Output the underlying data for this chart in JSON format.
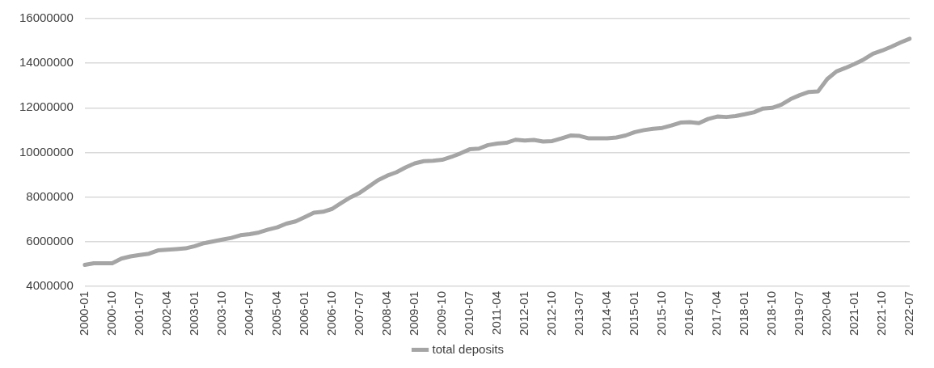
{
  "chart_data": {
    "type": "line",
    "categories": [
      "2000-01",
      null,
      null,
      "2000-10",
      null,
      null,
      "2001-07",
      null,
      null,
      "2002-04",
      null,
      null,
      "2003-01",
      null,
      null,
      "2003-10",
      null,
      null,
      "2004-07",
      null,
      null,
      "2005-04",
      null,
      null,
      "2006-01",
      null,
      null,
      "2006-10",
      null,
      null,
      "2007-07",
      null,
      null,
      "2008-04",
      null,
      null,
      "2009-01",
      null,
      null,
      "2009-10",
      null,
      null,
      "2010-07",
      null,
      null,
      "2011-04",
      null,
      null,
      "2012-01",
      null,
      null,
      "2012-10",
      null,
      null,
      "2013-07",
      null,
      null,
      "2014-04",
      null,
      null,
      "2015-01",
      null,
      null,
      "2015-10",
      null,
      null,
      "2016-07",
      null,
      null,
      "2017-04",
      null,
      null,
      "2018-01",
      null,
      null,
      "2018-10",
      null,
      null,
      "2019-07",
      null,
      null,
      "2020-04",
      null,
      null,
      "2021-01",
      null,
      null,
      "2021-10",
      null,
      null,
      "2022-07"
    ],
    "series": [
      {
        "name": "total deposits",
        "color": "#a5a5a5",
        "values": [
          4960000,
          5030000,
          5030000,
          5030000,
          5240000,
          5340000,
          5400000,
          5460000,
          5610000,
          5640000,
          5670000,
          5700000,
          5800000,
          5930000,
          6010000,
          6090000,
          6170000,
          6290000,
          6340000,
          6410000,
          6540000,
          6640000,
          6810000,
          6910000,
          7100000,
          7300000,
          7340000,
          7470000,
          7740000,
          7990000,
          8190000,
          8470000,
          8760000,
          8960000,
          9110000,
          9330000,
          9510000,
          9610000,
          9630000,
          9670000,
          9800000,
          9960000,
          10140000,
          10170000,
          10330000,
          10400000,
          10430000,
          10570000,
          10530000,
          10560000,
          10490000,
          10510000,
          10630000,
          10760000,
          10740000,
          10630000,
          10630000,
          10630000,
          10670000,
          10760000,
          10910000,
          11000000,
          11060000,
          11100000,
          11210000,
          11340000,
          11360000,
          11310000,
          11500000,
          11610000,
          11590000,
          11630000,
          11710000,
          11800000,
          11970000,
          12000000,
          12140000,
          12390000,
          12570000,
          12710000,
          12740000,
          13290000,
          13630000,
          13790000,
          13970000,
          14170000,
          14430000,
          14570000,
          14740000,
          14930000,
          15100000
        ]
      }
    ],
    "ylim": [
      4000000,
      16000000
    ],
    "yticks": [
      4000000,
      6000000,
      8000000,
      10000000,
      12000000,
      14000000,
      16000000
    ],
    "grid": "y",
    "legend": "bottom",
    "marker": "none",
    "line_style": "solid"
  }
}
